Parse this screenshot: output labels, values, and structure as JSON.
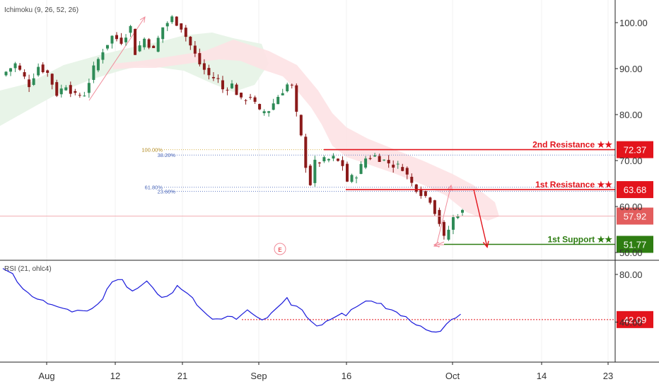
{
  "indicators": {
    "main": "Ichimoku (9, 26, 52, 26)",
    "sub": "RSI (21, ohlc4)"
  },
  "colors": {
    "up": "#2e8b57",
    "down": "#8b1a1a",
    "red_line": "#e3141c",
    "green_line": "#2e7d12",
    "rsi_line": "#1a1adb",
    "fib_upper": "#d8b24a",
    "fib_lower": "#6a82c8",
    "pink": "#f08c9a",
    "kumo_green": "#e6f3e6",
    "kumo_red": "#fde2e4"
  },
  "chart_data": [
    {
      "type": "candlestick",
      "name": "price",
      "ylim": [
        50,
        104
      ],
      "y_ticks": [
        100,
        90,
        80,
        70,
        60,
        50
      ],
      "y_tick_labels": [
        "100.00",
        "90.00",
        "80.00",
        "70.00",
        "60.00",
        "50.00"
      ],
      "x_ticks": [
        "Aug",
        "12",
        "21",
        "Sep",
        "16",
        "Oct",
        "14",
        "23"
      ],
      "close_path": [
        [
          0,
          88.5
        ],
        [
          3,
          91
        ],
        [
          6,
          86.5
        ],
        [
          8,
          90.5
        ],
        [
          10,
          89
        ],
        [
          12,
          84.5
        ],
        [
          14,
          86.5
        ],
        [
          16,
          84
        ],
        [
          18,
          84.5
        ],
        [
          20,
          90
        ],
        [
          22,
          94
        ],
        [
          24,
          97
        ],
        [
          26,
          96
        ],
        [
          28,
          99
        ],
        [
          29,
          93.5
        ],
        [
          31,
          96.5
        ],
        [
          33,
          94
        ],
        [
          35,
          99
        ],
        [
          37,
          101
        ],
        [
          39,
          99
        ],
        [
          41,
          95
        ],
        [
          43,
          91
        ],
        [
          45,
          88.5
        ],
        [
          47,
          87.5
        ],
        [
          48,
          85.5
        ],
        [
          50,
          86.5
        ],
        [
          52,
          83
        ],
        [
          54,
          84
        ],
        [
          56,
          80.5
        ],
        [
          58,
          81
        ],
        [
          60,
          84
        ],
        [
          62,
          86.5
        ],
        [
          63,
          86
        ],
        [
          64,
          80
        ],
        [
          65,
          75
        ],
        [
          66,
          69
        ],
        [
          67,
          65
        ],
        [
          68,
          69.5
        ],
        [
          70,
          70
        ],
        [
          72,
          70.5
        ],
        [
          74,
          69
        ],
        [
          75,
          65.5
        ],
        [
          77,
          67
        ],
        [
          79,
          70.5
        ],
        [
          81,
          71
        ],
        [
          83,
          70
        ],
        [
          85,
          69
        ],
        [
          87,
          68.5
        ],
        [
          89,
          65
        ],
        [
          91,
          63
        ],
        [
          93,
          61.5
        ],
        [
          95,
          56.5
        ],
        [
          96,
          53
        ],
        [
          97,
          55
        ],
        [
          98,
          57.5
        ],
        [
          99,
          58.5
        ],
        [
          100,
          58.8
        ]
      ],
      "last_price": 57.92,
      "last_price_label": "57.92",
      "ichimoku_cloud": [
        {
          "color": "green",
          "from": 0,
          "to": 58
        },
        {
          "color": "red",
          "from": 52,
          "to": 108
        }
      ],
      "fibonacci": [
        {
          "label": "100.00%",
          "value": 72.37
        },
        {
          "label": "38.20%",
          "value": 71.2
        },
        {
          "label": "61.80%",
          "value": 64.2
        },
        {
          "label": "23.60%",
          "value": 63.3
        }
      ],
      "levels": [
        {
          "name": "2nd Resistance ★★",
          "value": 72.37,
          "label": "72.37",
          "type": "resistance"
        },
        {
          "name": "1st Resistance ★★",
          "value": 63.68,
          "label": "63.68",
          "type": "resistance"
        },
        {
          "name": "1st Support ★★",
          "value": 51.77,
          "label": "51.77",
          "type": "support"
        }
      ],
      "marker": "E"
    },
    {
      "type": "line",
      "name": "RSI (21, ohlc4)",
      "ylim": [
        30,
        86
      ],
      "y_ticks": [
        80,
        40
      ],
      "y_tick_labels": [
        "80.00",
        "40.00"
      ],
      "values": [
        85,
        83,
        80,
        74,
        68,
        64,
        62,
        59,
        58,
        56,
        54,
        53,
        52,
        50,
        49,
        50,
        49,
        50,
        51,
        55,
        60,
        67,
        74,
        76,
        75,
        70,
        66,
        68,
        72,
        74,
        69,
        64,
        60,
        62,
        65,
        70,
        68,
        64,
        60,
        55,
        50,
        46,
        43,
        42,
        43,
        45,
        44,
        43,
        46,
        50,
        48,
        44,
        42,
        44,
        47,
        52,
        56,
        60,
        55,
        53,
        50,
        45,
        40,
        37,
        38,
        40,
        43,
        45,
        47,
        46,
        50,
        53,
        56,
        57,
        58,
        56,
        55,
        52,
        50,
        48,
        46,
        44,
        40,
        38,
        36,
        34,
        32,
        31,
        33,
        38,
        42,
        44,
        46
      ],
      "reference_level": 42.09,
      "reference_label": "42.09"
    }
  ]
}
